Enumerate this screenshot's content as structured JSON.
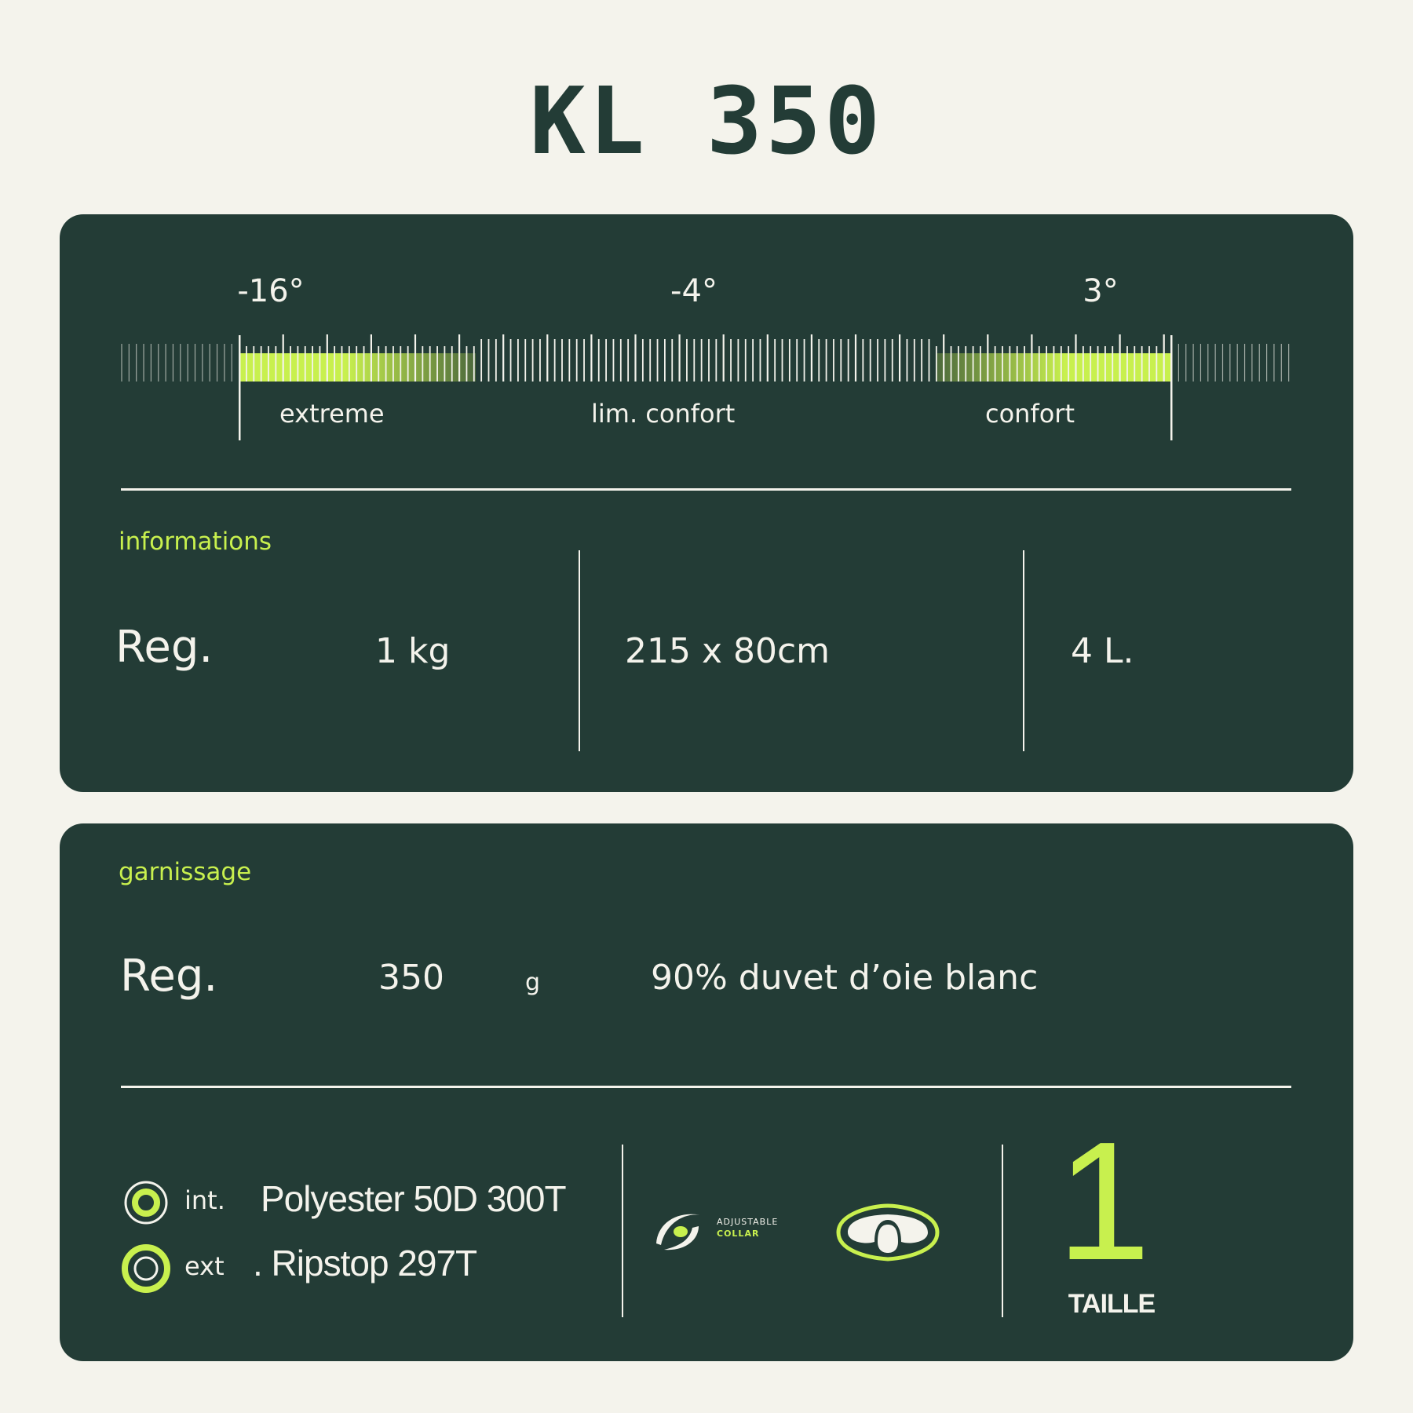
{
  "title": "KL 350",
  "temperature": {
    "labels": [
      "-16°",
      "-4°",
      "3°"
    ],
    "zones": [
      "extreme",
      "lim. confort",
      "confort"
    ],
    "accent": "#c8f04e"
  },
  "informations": {
    "heading": "informations",
    "model": "Reg.",
    "weight": "1 kg",
    "dimensions": "215 x 80cm",
    "volume": "4 L."
  },
  "garnissage": {
    "heading": "garnissage",
    "model": "Reg.",
    "fill_weight": "350",
    "unit": "g",
    "fill": "90% duvet d’oie blanc"
  },
  "materials": {
    "int_label": "int.",
    "int_value": "Polyester 50D 300T",
    "ext_label": "ext",
    "ext_value": ". Ripstop 297T"
  },
  "features": {
    "collar_line1": "ADJUSTABLE",
    "collar_line2": "COLLAR",
    "icons": [
      "adjustable-collar-icon",
      "neck-collar-icon"
    ]
  },
  "size": {
    "number": "1",
    "label": "TAILLE"
  },
  "colors": {
    "background": "#f4f3ec",
    "card": "#233c36",
    "accent": "#c8f04e",
    "text": "#f4f3ec"
  }
}
